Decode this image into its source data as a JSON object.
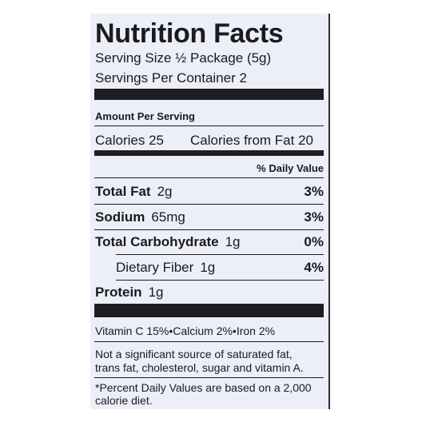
{
  "title": "Nutrition Facts",
  "serving_size": "Serving Size ½ Package (5g)",
  "servings": "Servings Per Container 2",
  "amount_per_serving": "Amount Per Serving",
  "calories": "Calories 25",
  "calories_from_fat": "Calories from Fat 20",
  "daily_value_header": "% Daily Value",
  "nutrients": [
    {
      "name": "Total Fat",
      "amount": "2g",
      "dv": "3%"
    },
    {
      "name": "Sodium",
      "amount": "65mg",
      "dv": "3%"
    },
    {
      "name": "Total Carbohydrate",
      "amount": "1g",
      "dv": "0%"
    },
    {
      "name": "Dietary Fiber",
      "amount": "1g",
      "dv": "4%",
      "indent": true
    },
    {
      "name": "Protein",
      "amount": "1g"
    }
  ],
  "vitamins": "Vitamin C 15%•Calcium 2%•Iron 2%",
  "note": [
    "Not a significant source of saturated fat,",
    "trans fat, cholesterol, sugar and vitamin A."
  ],
  "footnote": [
    "*Percent Daily Values are based on a 2,000",
    "calorie diet."
  ]
}
